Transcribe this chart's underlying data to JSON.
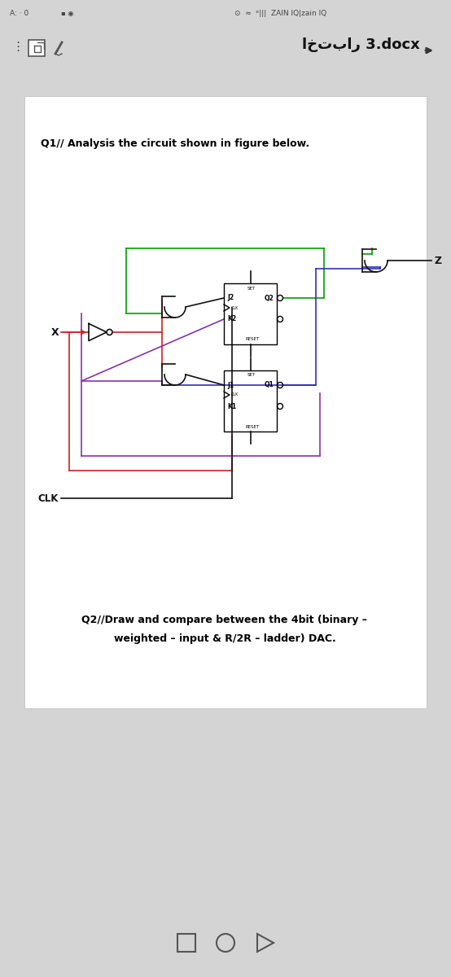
{
  "bg_color": "#d4d4d4",
  "page_bg": "#ffffff",
  "q1_text": "Q1// Analysis the circuit shown in figure below.",
  "q2_text_line1": "Q2//Draw and compare between the 4bit (binary –",
  "q2_text_line2": "weighted – input & R/2R – ladder) DAC.",
  "gc": "#00a000",
  "rc": "#cc2222",
  "bc": "#3030bb",
  "pc": "#8833aa",
  "bk": "#111111",
  "gray": "#555555",
  "status_left": "A: · 0",
  "status_right": "ZAIN IQ|zain IQ",
  "toolbar_title": "اختبار 3.docx"
}
